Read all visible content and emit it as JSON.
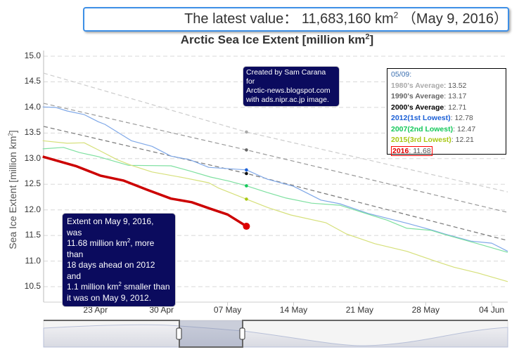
{
  "header": {
    "prefix": "The latest value：",
    "value": "11,683,160 km",
    "sup": "2",
    "date": "（May 9, 2016）"
  },
  "credit": {
    "lines": [
      "Created by Sam Carana for",
      "Arctic-news.blogspot.com",
      "with ads.nipr.ac.jp image."
    ]
  },
  "extent_note": {
    "l1": "Extent on May 9, 2016, was",
    "l2a": "11.68 million km",
    "l2sup": "2",
    "l2b": ", more than",
    "l3": "18 days ahead on 2012 and",
    "l4a": "1.1 million km",
    "l4sup": "2",
    "l4b": " smaller than",
    "l5": "it was on May 9, 2012."
  },
  "legend": {
    "date": "05/09:",
    "items": [
      {
        "label": "1980's Average",
        "value": "13.52",
        "color": "#aaaaaa"
      },
      {
        "label": "1990's Average",
        "value": "13.17",
        "color": "#666666"
      },
      {
        "label": "2000's Average",
        "value": "12.71",
        "color": "#000000"
      },
      {
        "label": "2012(1st Lowest)",
        "value": "12.78",
        "color": "#1a5fd6"
      },
      {
        "label": "2007(2nd Lowest)",
        "value": "12.47",
        "color": "#14c85a"
      },
      {
        "label": "2015(3rd Lowest)",
        "value": "12.21",
        "color": "#a8c814"
      },
      {
        "label": "2016",
        "value": "11.68",
        "color": "#dd0000"
      }
    ]
  },
  "chart_data": {
    "type": "line",
    "title": "Arctic Sea Ice Extent [million km²]",
    "title_text": "Arctic Sea Ice Extent [million km",
    "title_sup": "2",
    "title_end": "]",
    "ylabel": "Sea Ice Extent [million km²]",
    "ylabel_text": "Sea Ice Extent [million km",
    "ylabel_sup": "2",
    "ylabel_end": "]",
    "xunit": "day of year 2016",
    "xlim": [
      108.5,
      157.7
    ],
    "ylim": [
      10.2,
      15.1
    ],
    "yticks": [
      10.5,
      11.0,
      11.5,
      12.0,
      12.5,
      13.0,
      13.5,
      14.0,
      14.5,
      15.0
    ],
    "ytick_labels": [
      "10.5",
      "11.0",
      "11.5",
      "12.0",
      "12.5",
      "13.0",
      "13.5",
      "14.0",
      "14.5",
      "15.0"
    ],
    "xticks": [
      114,
      121,
      128,
      135,
      142,
      149,
      156
    ],
    "xtick_labels": [
      "23 Apr",
      "30 Apr",
      "07 May",
      "14 May",
      "21 May",
      "28 May",
      "04 Jun"
    ],
    "grid": true,
    "marker_day": 130,
    "series": [
      {
        "name": "1980's Average",
        "color": "#cccccc",
        "dash": "6,4",
        "width": 1.2,
        "x": [
          108.5,
          130,
          157.7
        ],
        "y": [
          14.67,
          13.52,
          12.35
        ]
      },
      {
        "name": "1990's Average",
        "color": "#999999",
        "dash": "6,4",
        "width": 1.2,
        "x": [
          108.5,
          130,
          157.7
        ],
        "y": [
          14.08,
          13.17,
          11.95
        ]
      },
      {
        "name": "2000's Average",
        "color": "#777777",
        "dash": "6,4",
        "width": 1.2,
        "x": [
          108.5,
          130,
          157.7
        ],
        "y": [
          13.63,
          12.71,
          11.4
        ]
      },
      {
        "name": "2012",
        "color": "#7fa8e8",
        "width": 1.2,
        "x": [
          108.4,
          109.8,
          111,
          112.8,
          114.3,
          115,
          117.8,
          120,
          122,
          124,
          126,
          130,
          132.2,
          135,
          137.9,
          139.9,
          142.9,
          147,
          149.8,
          151,
          153.8,
          156,
          157.7
        ],
        "y": [
          14.01,
          14.0,
          13.93,
          13.86,
          13.72,
          13.67,
          13.35,
          13.24,
          13.05,
          12.98,
          12.83,
          12.78,
          12.6,
          12.46,
          12.19,
          12.12,
          11.93,
          11.74,
          11.6,
          11.53,
          11.39,
          11.35,
          11.19
        ]
      },
      {
        "name": "2007",
        "color": "#7ee0a0",
        "width": 1.2,
        "x": [
          108.4,
          110.6,
          112.3,
          114.3,
          117.5,
          122,
          124,
          126.2,
          128.2,
          130,
          132.2,
          134.2,
          136.9,
          139.9,
          144.9,
          147,
          149.6,
          151,
          154.5,
          157.7
        ],
        "y": [
          13.19,
          13.22,
          13.12,
          13.04,
          12.87,
          12.86,
          12.76,
          12.64,
          12.56,
          12.47,
          12.34,
          12.23,
          12.13,
          12.09,
          11.8,
          11.64,
          11.6,
          11.52,
          11.34,
          11.17
        ]
      },
      {
        "name": "2015",
        "color": "#d6e07a",
        "width": 1.2,
        "x": [
          108.4,
          111,
          112.8,
          114.3,
          116.3,
          117.8,
          120,
          123.3,
          126,
          127,
          130,
          132.2,
          134.7,
          138.4,
          140.6,
          143.6,
          147,
          150,
          152,
          154.5,
          157.7
        ],
        "y": [
          13.35,
          13.3,
          13.31,
          13.17,
          12.98,
          12.87,
          12.74,
          12.63,
          12.53,
          12.43,
          12.21,
          12.05,
          11.9,
          11.75,
          11.53,
          11.34,
          11.19,
          11.0,
          10.88,
          10.77,
          10.6
        ]
      },
      {
        "name": "2016",
        "color": "#cc0000",
        "width": 3.5,
        "x": [
          108.4,
          112,
          114.5,
          117,
          119.5,
          122,
          124.2,
          126.2,
          128,
          130
        ],
        "y": [
          13.04,
          12.85,
          12.67,
          12.57,
          12.39,
          12.22,
          12.15,
          12.02,
          11.91,
          11.68
        ]
      }
    ],
    "markers": [
      {
        "name": "1980's Average",
        "value": 13.52,
        "color": "#aaaaaa"
      },
      {
        "name": "1990's Average",
        "value": 13.17,
        "color": "#666666"
      },
      {
        "name": "2000's Average",
        "value": 12.71,
        "color": "#111111"
      },
      {
        "name": "2012",
        "value": 12.78,
        "color": "#1a5fd6"
      },
      {
        "name": "2007",
        "value": 12.47,
        "color": "#14c85a"
      },
      {
        "name": "2015",
        "value": 12.21,
        "color": "#a8c814"
      },
      {
        "name": "2016",
        "value": 11.68,
        "color": "#dd0000"
      }
    ],
    "navigator": {
      "selected_range": [
        "May 1",
        "May 9"
      ]
    }
  }
}
